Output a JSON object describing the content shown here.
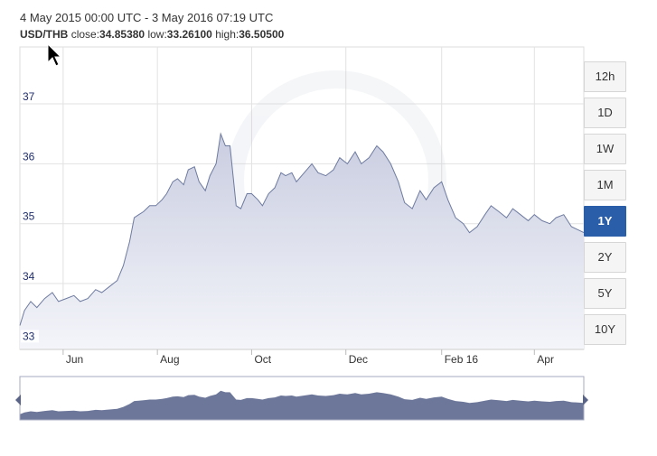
{
  "header": {
    "date_range": "4 May 2015 00:00 UTC - 3 May 2016 07:19 UTC",
    "pair": "USD/THB",
    "close_label": "close:",
    "close_value": "34.85380",
    "low_label": "low:",
    "low_value": "33.26100",
    "high_label": "high:",
    "high_value": "36.50500"
  },
  "timeframes": [
    {
      "label": "12h",
      "active": false
    },
    {
      "label": "1D",
      "active": false
    },
    {
      "label": "1W",
      "active": false
    },
    {
      "label": "1M",
      "active": false
    },
    {
      "label": "1Y",
      "active": true
    },
    {
      "label": "2Y",
      "active": false
    },
    {
      "label": "5Y",
      "active": false
    },
    {
      "label": "10Y",
      "active": false
    }
  ],
  "colors": {
    "line": "#6e7ba0",
    "area_top": "#c9cde0",
    "area_bottom": "#f4f5fa",
    "navigator": "#6d7799",
    "active_button": "#2b5ea8",
    "grid": "#e2e2e2"
  },
  "chart_data": {
    "type": "area",
    "title": "",
    "xlabel": "",
    "ylabel": "",
    "ylim": [
      32.9,
      37.95
    ],
    "yticks": [
      33,
      34,
      35,
      36,
      37
    ],
    "xlim": [
      "2015-05-04",
      "2016-05-03"
    ],
    "xticks": [
      {
        "label": "Jun",
        "date": "2015-06-01"
      },
      {
        "label": "Aug",
        "date": "2015-08-01"
      },
      {
        "label": "Oct",
        "date": "2015-10-01"
      },
      {
        "label": "Dec",
        "date": "2015-12-01"
      },
      {
        "label": "Feb 16",
        "date": "2016-02-01"
      },
      {
        "label": "Apr",
        "date": "2016-04-01"
      }
    ],
    "grid": true,
    "legend": "none",
    "series": [
      {
        "x": [
          "2015-05-04",
          "2015-05-07",
          "2015-05-11",
          "2015-05-15",
          "2015-05-20",
          "2015-05-25",
          "2015-05-29",
          "2015-06-03",
          "2015-06-08",
          "2015-06-12",
          "2015-06-17",
          "2015-06-22",
          "2015-06-26",
          "2015-07-01",
          "2015-07-06",
          "2015-07-10",
          "2015-07-14",
          "2015-07-17",
          "2015-07-20",
          "2015-07-23",
          "2015-07-27",
          "2015-07-31",
          "2015-08-04",
          "2015-08-07",
          "2015-08-11",
          "2015-08-14",
          "2015-08-18",
          "2015-08-21",
          "2015-08-25",
          "2015-08-28",
          "2015-09-01",
          "2015-09-04",
          "2015-09-08",
          "2015-09-11",
          "2015-09-14",
          "2015-09-17",
          "2015-09-21",
          "2015-09-24",
          "2015-09-28",
          "2015-10-01",
          "2015-10-05",
          "2015-10-08",
          "2015-10-12",
          "2015-10-16",
          "2015-10-20",
          "2015-10-23",
          "2015-10-27",
          "2015-10-30",
          "2015-11-04",
          "2015-11-09",
          "2015-11-13",
          "2015-11-18",
          "2015-11-23",
          "2015-11-27",
          "2015-12-02",
          "2015-12-07",
          "2015-12-11",
          "2015-12-16",
          "2015-12-21",
          "2015-12-25",
          "2015-12-30",
          "2016-01-04",
          "2016-01-08",
          "2016-01-13",
          "2016-01-18",
          "2016-01-22",
          "2016-01-27",
          "2016-02-01",
          "2016-02-05",
          "2016-02-10",
          "2016-02-15",
          "2016-02-19",
          "2016-02-24",
          "2016-02-29",
          "2016-03-04",
          "2016-03-09",
          "2016-03-14",
          "2016-03-18",
          "2016-03-23",
          "2016-03-28",
          "2016-04-01",
          "2016-04-06",
          "2016-04-11",
          "2016-04-15",
          "2016-04-20",
          "2016-04-25",
          "2016-04-29",
          "2016-05-03"
        ],
        "values": [
          33.3,
          33.55,
          33.7,
          33.6,
          33.75,
          33.85,
          33.7,
          33.75,
          33.8,
          33.7,
          33.75,
          33.9,
          33.85,
          33.95,
          34.05,
          34.3,
          34.7,
          35.1,
          35.15,
          35.2,
          35.3,
          35.3,
          35.4,
          35.5,
          35.7,
          35.75,
          35.65,
          35.9,
          35.95,
          35.7,
          35.55,
          35.8,
          36.0,
          36.5,
          36.3,
          36.3,
          35.3,
          35.25,
          35.5,
          35.5,
          35.4,
          35.3,
          35.5,
          35.6,
          35.85,
          35.8,
          35.85,
          35.7,
          35.85,
          36.0,
          35.85,
          35.8,
          35.9,
          36.1,
          36.0,
          36.2,
          36.0,
          36.1,
          36.3,
          36.2,
          36.0,
          35.7,
          35.35,
          35.25,
          35.55,
          35.4,
          35.6,
          35.7,
          35.4,
          35.1,
          35.0,
          34.85,
          34.95,
          35.15,
          35.3,
          35.2,
          35.1,
          35.25,
          35.15,
          35.05,
          35.15,
          35.05,
          35.0,
          35.1,
          35.15,
          34.95,
          34.9,
          34.85
        ]
      }
    ]
  }
}
